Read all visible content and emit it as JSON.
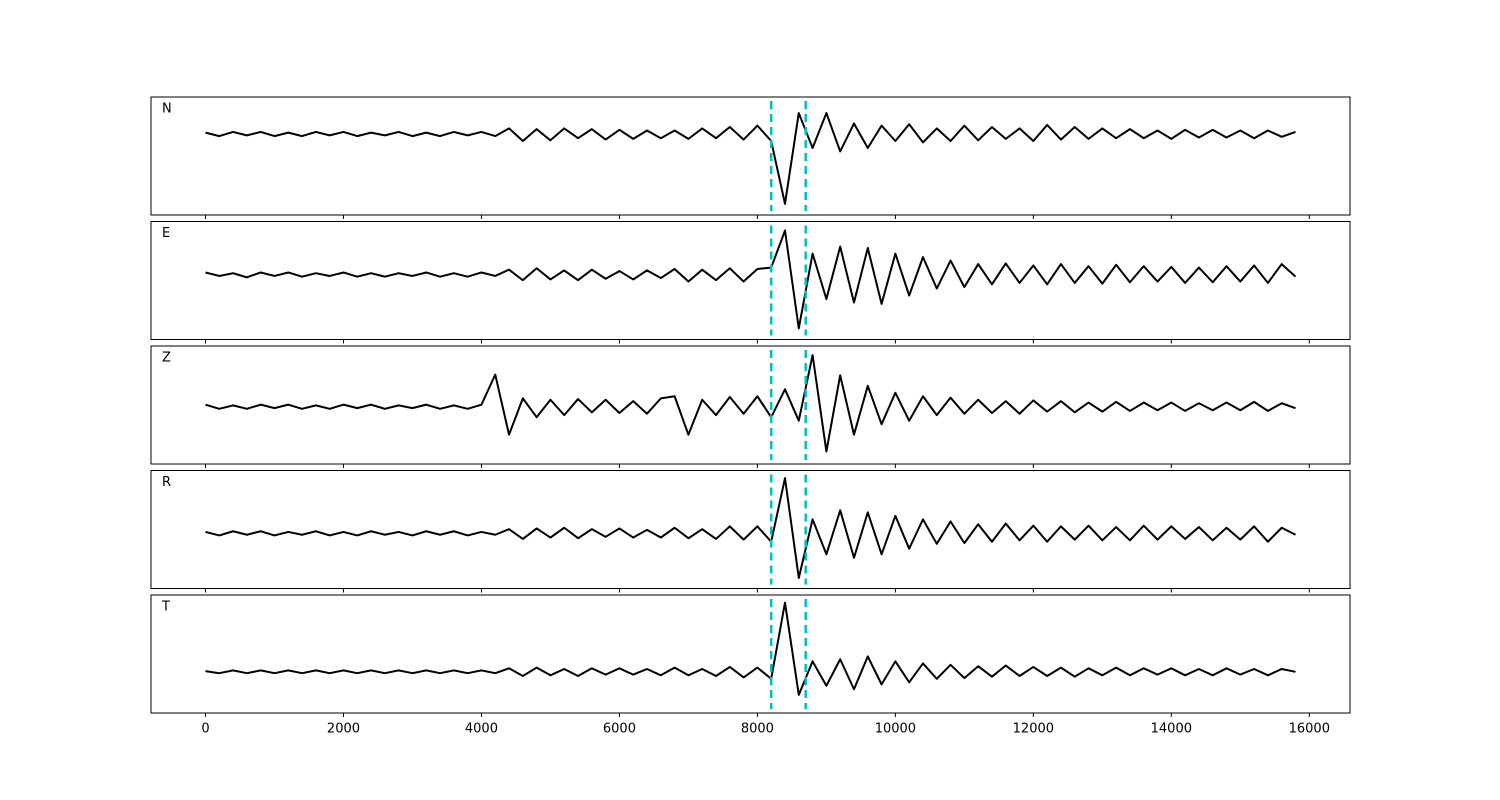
{
  "chart_data": {
    "type": "line",
    "xlim": [
      -790,
      16590
    ],
    "xticks": [
      0,
      2000,
      4000,
      6000,
      8000,
      10000,
      12000,
      14000,
      16000
    ],
    "vlines": [
      8200,
      8700
    ],
    "vline_color": "#00bfbf",
    "x": [
      0,
      200,
      400,
      600,
      800,
      1000,
      1200,
      1400,
      1600,
      1800,
      2000,
      2200,
      2400,
      2600,
      2800,
      3000,
      3200,
      3400,
      3600,
      3800,
      4000,
      4200,
      4400,
      4600,
      4800,
      5000,
      5200,
      5400,
      5600,
      5800,
      6000,
      6200,
      6400,
      6600,
      6800,
      7000,
      7200,
      7400,
      7600,
      7800,
      8000,
      8200,
      8400,
      8600,
      8800,
      9000,
      9200,
      9400,
      9600,
      9800,
      10000,
      10200,
      10400,
      10600,
      10800,
      11000,
      11200,
      11400,
      11600,
      11800,
      12000,
      12200,
      12400,
      12600,
      12800,
      13000,
      13200,
      13400,
      13600,
      13800,
      14000,
      14200,
      14400,
      14600,
      14800,
      15000,
      15200,
      15400,
      15600,
      15800
    ],
    "series": [
      {
        "name": "N",
        "color": "#000000",
        "ylim": [
          -1.16,
          0.53
        ],
        "values": [
          0.02,
          -0.03,
          0.03,
          -0.02,
          0.03,
          -0.03,
          0.02,
          -0.03,
          0.03,
          -0.02,
          0.03,
          -0.03,
          0.02,
          -0.02,
          0.03,
          -0.03,
          0.02,
          -0.03,
          0.03,
          -0.02,
          0.03,
          -0.03,
          0.08,
          -0.1,
          0.07,
          -0.09,
          0.08,
          -0.06,
          0.07,
          -0.08,
          0.06,
          -0.07,
          0.05,
          -0.06,
          0.05,
          -0.07,
          0.08,
          -0.06,
          0.1,
          -0.08,
          0.12,
          -0.1,
          -1.0,
          0.3,
          -0.2,
          0.3,
          -0.25,
          0.15,
          -0.2,
          0.12,
          -0.1,
          0.14,
          -0.12,
          0.08,
          -0.1,
          0.12,
          -0.09,
          0.1,
          -0.07,
          0.08,
          -0.1,
          0.13,
          -0.08,
          0.1,
          -0.07,
          0.08,
          -0.06,
          0.07,
          -0.06,
          0.05,
          -0.07,
          0.06,
          -0.05,
          0.06,
          -0.05,
          0.05,
          -0.06,
          0.05,
          -0.04,
          0.03
        ]
      },
      {
        "name": "E",
        "color": "#000000",
        "ylim": [
          -0.93,
          0.76
        ],
        "values": [
          0.03,
          -0.02,
          0.02,
          -0.04,
          0.03,
          -0.02,
          0.03,
          -0.03,
          0.02,
          -0.02,
          0.03,
          -0.03,
          0.02,
          -0.03,
          0.02,
          -0.02,
          0.03,
          -0.03,
          0.02,
          -0.03,
          0.03,
          -0.02,
          0.07,
          -0.08,
          0.09,
          -0.07,
          0.06,
          -0.08,
          0.07,
          -0.06,
          0.05,
          -0.07,
          0.06,
          -0.05,
          0.08,
          -0.1,
          0.07,
          -0.08,
          0.09,
          -0.1,
          0.08,
          0.1,
          0.63,
          -0.77,
          0.3,
          -0.35,
          0.4,
          -0.4,
          0.38,
          -0.42,
          0.3,
          -0.3,
          0.25,
          -0.2,
          0.2,
          -0.18,
          0.15,
          -0.14,
          0.16,
          -0.12,
          0.13,
          -0.14,
          0.15,
          -0.12,
          0.12,
          -0.13,
          0.14,
          -0.11,
          0.12,
          -0.1,
          0.11,
          -0.12,
          0.1,
          -0.11,
          0.12,
          -0.1,
          0.13,
          -0.12,
          0.15,
          -0.03
        ]
      },
      {
        "name": "Z",
        "color": "#000000",
        "ylim": [
          -0.82,
          0.87
        ],
        "values": [
          0.03,
          -0.03,
          0.02,
          -0.03,
          0.03,
          -0.02,
          0.03,
          -0.03,
          0.02,
          -0.03,
          0.03,
          -0.02,
          0.03,
          -0.03,
          0.02,
          -0.02,
          0.03,
          -0.03,
          0.02,
          -0.03,
          0.03,
          0.46,
          -0.4,
          0.12,
          -0.15,
          0.1,
          -0.12,
          0.11,
          -0.08,
          0.1,
          -0.09,
          0.08,
          -0.1,
          0.12,
          0.15,
          -0.4,
          0.1,
          -0.12,
          0.14,
          -0.1,
          0.15,
          -0.15,
          0.25,
          -0.2,
          0.74,
          -0.64,
          0.45,
          -0.4,
          0.3,
          -0.25,
          0.2,
          -0.2,
          0.15,
          -0.12,
          0.13,
          -0.1,
          0.1,
          -0.09,
          0.08,
          -0.1,
          0.09,
          -0.07,
          0.08,
          -0.08,
          0.06,
          -0.07,
          0.07,
          -0.06,
          0.06,
          -0.05,
          0.06,
          -0.06,
          0.05,
          -0.05,
          0.06,
          -0.05,
          0.07,
          -0.06,
          0.05,
          -0.02
        ]
      },
      {
        "name": "R",
        "color": "#000000",
        "ylim": [
          -0.79,
          0.9
        ],
        "values": [
          0.02,
          -0.03,
          0.03,
          -0.02,
          0.03,
          -0.03,
          0.02,
          -0.02,
          0.03,
          -0.03,
          0.02,
          -0.03,
          0.03,
          -0.02,
          0.02,
          -0.03,
          0.03,
          -0.02,
          0.03,
          -0.03,
          0.02,
          -0.02,
          0.06,
          -0.08,
          0.07,
          -0.06,
          0.08,
          -0.07,
          0.06,
          -0.05,
          0.07,
          -0.06,
          0.05,
          -0.06,
          0.08,
          -0.07,
          0.06,
          -0.08,
          0.1,
          -0.09,
          0.1,
          -0.12,
          0.79,
          -0.64,
          0.2,
          -0.3,
          0.33,
          -0.35,
          0.3,
          -0.3,
          0.25,
          -0.22,
          0.2,
          -0.15,
          0.17,
          -0.14,
          0.13,
          -0.12,
          0.14,
          -0.1,
          0.11,
          -0.12,
          0.1,
          -0.09,
          0.11,
          -0.1,
          0.09,
          -0.1,
          0.11,
          -0.09,
          0.1,
          -0.08,
          0.09,
          -0.1,
          0.08,
          -0.09,
          0.1,
          -0.12,
          0.08,
          -0.02
        ]
      },
      {
        "name": "T",
        "color": "#000000",
        "ylim": [
          -0.59,
          1.1
        ],
        "values": [
          0.01,
          -0.02,
          0.02,
          -0.02,
          0.02,
          -0.02,
          0.02,
          -0.02,
          0.02,
          -0.02,
          0.02,
          -0.02,
          0.02,
          -0.02,
          0.02,
          -0.02,
          0.02,
          -0.02,
          0.02,
          -0.02,
          0.02,
          -0.02,
          0.05,
          -0.06,
          0.06,
          -0.05,
          0.04,
          -0.06,
          0.05,
          -0.04,
          0.05,
          -0.04,
          0.04,
          -0.05,
          0.06,
          -0.05,
          0.04,
          -0.06,
          0.07,
          -0.08,
          0.06,
          -0.1,
          0.99,
          -0.33,
          0.15,
          -0.2,
          0.18,
          -0.25,
          0.22,
          -0.18,
          0.15,
          -0.15,
          0.12,
          -0.1,
          0.1,
          -0.09,
          0.08,
          -0.07,
          0.09,
          -0.06,
          0.07,
          -0.06,
          0.06,
          -0.07,
          0.05,
          -0.05,
          0.06,
          -0.05,
          0.05,
          -0.04,
          0.05,
          -0.05,
          0.04,
          -0.05,
          0.05,
          -0.04,
          0.04,
          -0.05,
          0.04,
          0.0
        ]
      }
    ]
  }
}
